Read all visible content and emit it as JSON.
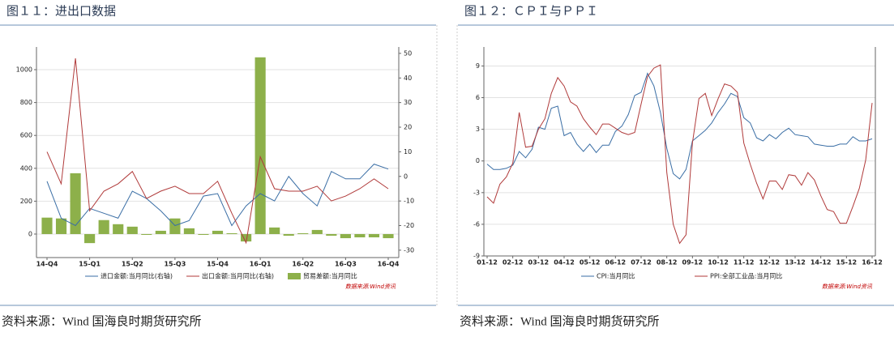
{
  "chart_data": [
    {
      "type": "combo",
      "title": "图１１：进出口数据",
      "source": "资料来源：Wind 国海良时期货研究所",
      "note": "数据来源:Wind资讯",
      "categories": [
        "14-Q4",
        null,
        null,
        "15-Q1",
        null,
        null,
        "15-Q2",
        null,
        null,
        "15-Q3",
        null,
        null,
        "15-Q4",
        null,
        null,
        "16-Q1",
        null,
        null,
        "16-Q2",
        null,
        null,
        "16-Q3",
        null,
        null,
        "16-Q4"
      ],
      "ylim": [
        -143,
        1138
      ],
      "yticks": [
        0,
        200,
        400,
        600,
        800,
        1000
      ],
      "y2lim": [
        -33,
        52.6
      ],
      "y2ticks": [
        -30,
        -20,
        -10,
        0,
        10,
        20,
        30,
        40,
        50
      ],
      "grid": true,
      "series": [
        {
          "name": "进口金额:当月同比(右轴)",
          "type": "line",
          "axis": "y2",
          "color": "#3a6ea5",
          "values": [
            -2,
            -17,
            -20,
            -13,
            -15,
            -17,
            -6,
            -9,
            -14,
            -20,
            -18,
            -8,
            -7,
            -20,
            -12,
            -7,
            -10,
            0,
            -7,
            -12,
            2,
            -1,
            -1,
            5,
            3
          ]
        },
        {
          "name": "出口金额:当月同比(右轴)",
          "type": "line",
          "axis": "y2",
          "color": "#b03a3a",
          "values": [
            10,
            -3,
            48,
            -14,
            -6,
            -3,
            2,
            -9,
            -6,
            -4,
            -7,
            -7,
            -2,
            -15,
            -27,
            8,
            -5,
            -6,
            -6,
            -4,
            -10,
            -8,
            -5,
            -1,
            -5
          ]
        },
        {
          "name": "贸易差额:当月同比",
          "type": "bar",
          "color": "#8db04a",
          "values": [
            100,
            95,
            370,
            -55,
            85,
            60,
            45,
            -5,
            20,
            95,
            35,
            -5,
            20,
            5,
            -45,
            1075,
            40,
            -10,
            5,
            25,
            -10,
            -25,
            -20,
            -20,
            -25
          ]
        }
      ]
    },
    {
      "type": "line",
      "title": "图１２：ＣＰＩ与ＰＰＩ",
      "source": "资料来源：Wind 国海良时期货研究所",
      "note": "数据来源:Wind资讯",
      "categories": [
        "01-12",
        null,
        null,
        null,
        "02-12",
        null,
        null,
        null,
        "03-12",
        null,
        null,
        null,
        "04-12",
        null,
        null,
        null,
        "05-12",
        null,
        null,
        null,
        "06-12",
        null,
        null,
        null,
        "07-12",
        null,
        null,
        null,
        "08-12",
        null,
        null,
        null,
        "09-12",
        null,
        null,
        null,
        "10-12",
        null,
        null,
        null,
        "11-12",
        null,
        null,
        null,
        "12-12",
        null,
        null,
        null,
        "13-12",
        null,
        null,
        null,
        "14-12",
        null,
        null,
        null,
        "15-12",
        null,
        null,
        null,
        "16-12"
      ],
      "ylim": [
        -9,
        10.8
      ],
      "yticks": [
        -9,
        -6,
        -3,
        0,
        3,
        6,
        9
      ],
      "grid": true,
      "series": [
        {
          "name": "CPI:当月同比",
          "color": "#3a6ea5",
          "values": [
            -0.3,
            -0.8,
            -0.8,
            -0.7,
            -0.4,
            0.9,
            0.3,
            1.1,
            3.2,
            3.0,
            5.0,
            5.2,
            2.4,
            2.7,
            1.6,
            0.9,
            1.6,
            0.8,
            1.5,
            1.5,
            2.8,
            3.3,
            4.4,
            6.2,
            6.5,
            8.3,
            7.1,
            4.6,
            1.2,
            -1.2,
            -1.7,
            -0.8,
            1.9,
            2.4,
            2.9,
            3.6,
            4.6,
            5.4,
            6.4,
            6.1,
            4.1,
            3.6,
            2.2,
            1.9,
            2.5,
            2.1,
            2.7,
            3.1,
            2.5,
            2.4,
            2.3,
            1.6,
            1.5,
            1.4,
            1.4,
            1.6,
            1.6,
            2.3,
            1.9,
            1.9,
            2.1
          ]
        },
        {
          "name": "PPI:全部工业品:当月同比",
          "color": "#b03a3a",
          "values": [
            -3.4,
            -4.0,
            -2.2,
            -1.5,
            -0.2,
            4.6,
            1.3,
            1.4,
            3.0,
            4.0,
            6.4,
            7.9,
            7.1,
            5.6,
            5.2,
            4.0,
            3.2,
            2.5,
            3.5,
            3.5,
            3.1,
            2.7,
            2.5,
            2.7,
            5.4,
            8.0,
            8.8,
            9.1,
            -1.1,
            -6.0,
            -7.8,
            -7.0,
            1.7,
            5.9,
            6.4,
            4.3,
            5.9,
            7.3,
            7.1,
            6.5,
            1.7,
            -0.3,
            -2.1,
            -3.6,
            -1.9,
            -1.9,
            -2.7,
            -1.3,
            -1.4,
            -2.3,
            -1.1,
            -1.8,
            -3.3,
            -4.6,
            -4.8,
            -5.9,
            -5.9,
            -4.3,
            -2.6,
            0.1,
            5.5
          ]
        }
      ]
    }
  ]
}
